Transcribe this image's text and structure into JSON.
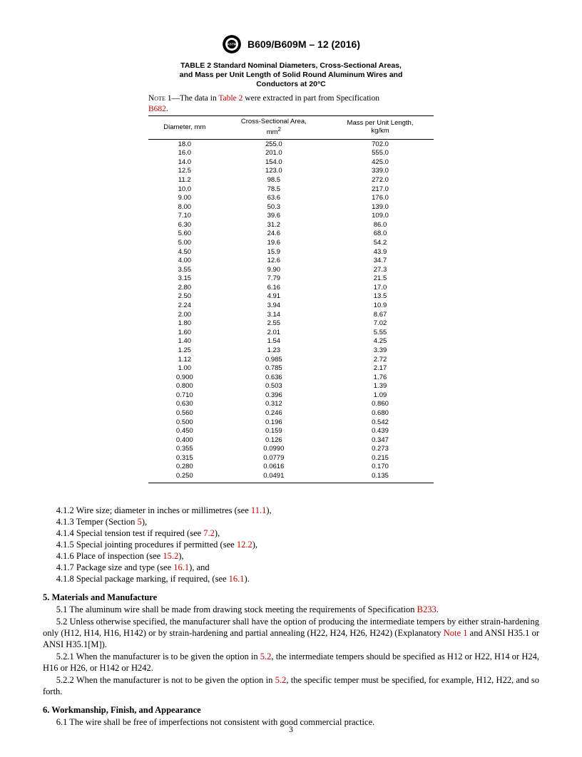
{
  "header": {
    "doc_id": "B609/B609M – 12 (2016)"
  },
  "table": {
    "type": "table",
    "title_line1": "TABLE 2 Standard Nominal Diameters, Cross-Sectional Areas,",
    "title_line2": "and Mass per Unit Length of Solid Round Aluminum Wires and",
    "title_line3": "Conductors at 20°C",
    "note_prefix": "Note",
    "note_number": "1",
    "note_text_before": "—The data in ",
    "note_link1": "Table 2",
    "note_text_mid": " were extracted in part from Specification ",
    "note_link2": "B682",
    "note_suffix": ".",
    "columns": [
      "Diameter, mm",
      "Cross-Sectional Area,\nmm",
      "Mass per Unit Length,\nkg/km"
    ],
    "col_super": [
      "",
      "2",
      ""
    ],
    "column_widths_pct": [
      33,
      34,
      33
    ],
    "colors": {
      "text": "#000000",
      "link": "#c00000",
      "border": "#000000",
      "background": "#ffffff"
    },
    "font": {
      "header_family": "Arial",
      "header_size_pt": 9.5,
      "body_family": "Arial",
      "body_size_pt": 9.5,
      "title_size_pt": 10.5,
      "note_family": "Times New Roman",
      "note_size_pt": 11.5
    },
    "rows": [
      [
        "18.0",
        "255.0",
        "702.0"
      ],
      [
        "16.0",
        "201.0",
        "555.0"
      ],
      [
        "14.0",
        "154.0",
        "425.0"
      ],
      [
        "12.5",
        "123.0",
        "339.0"
      ],
      [
        "11.2",
        "98.5",
        "272.0"
      ],
      [
        "10.0",
        "78.5",
        "217.0"
      ],
      [
        "9.00",
        "63.6",
        "176.0"
      ],
      [
        "8.00",
        "50.3",
        "139.0"
      ],
      [
        "7.10",
        "39.6",
        "109.0"
      ],
      [
        "6.30",
        "31.2",
        "86.0"
      ],
      [
        "5.60",
        "24.6",
        "68.0"
      ],
      [
        "5.00",
        "19.6",
        "54.2"
      ],
      [
        "4.50",
        "15.9",
        "43.9"
      ],
      [
        "4.00",
        "12.6",
        "34.7"
      ],
      [
        "3.55",
        "9.90",
        "27.3"
      ],
      [
        "3.15",
        "7.79",
        "21.5"
      ],
      [
        "2.80",
        "6.16",
        "17.0"
      ],
      [
        "2.50",
        "4.91",
        "13.5"
      ],
      [
        "2.24",
        "3.94",
        "10.9"
      ],
      [
        "2.00",
        "3.14",
        "8.67"
      ],
      [
        "1.80",
        "2.55",
        "7.02"
      ],
      [
        "1.60",
        "2.01",
        "5.55"
      ],
      [
        "1.40",
        "1.54",
        "4.25"
      ],
      [
        "1.25",
        "1.23",
        "3.39"
      ],
      [
        "1.12",
        "0.985",
        "2.72"
      ],
      [
        "1.00",
        "0.785",
        "2.17"
      ],
      [
        "0.900",
        "0.636",
        "1.76"
      ],
      [
        "0.800",
        "0.503",
        "1.39"
      ],
      [
        "0.710",
        "0.396",
        "1.09"
      ],
      [
        "0.630",
        "0.312",
        "0.860"
      ],
      [
        "0.560",
        "0.246",
        "0.680"
      ],
      [
        "0.500",
        "0.196",
        "0.542"
      ],
      [
        "0.450",
        "0.159",
        "0.439"
      ],
      [
        "0.400",
        "0.126",
        "0.347"
      ],
      [
        "0.355",
        "0.0990",
        "0.273"
      ],
      [
        "0.315",
        "0.0779",
        "0.215"
      ],
      [
        "0.280",
        "0.0616",
        "0.170"
      ],
      [
        "0.250",
        "0.0491",
        "0.135"
      ]
    ]
  },
  "body": {
    "items": [
      {
        "num": "4.1.2",
        "before": "Wire size; diameter in inches or millimetres (see ",
        "link": "11.1",
        "after": "),"
      },
      {
        "num": "4.1.3",
        "before": "Temper (Section ",
        "link": "5",
        "after": "),"
      },
      {
        "num": "4.1.4",
        "before": "Special tension test if required (see ",
        "link": "7.2",
        "after": "),"
      },
      {
        "num": "4.1.5",
        "before": "Special jointing procedures if permitted (see ",
        "link": "12.2",
        "after": "),"
      },
      {
        "num": "4.1.6",
        "before": "Place of inspection (see ",
        "link": "15.2",
        "after": "),"
      },
      {
        "num": "4.1.7",
        "before": "Package size and type (see ",
        "link": "16.1",
        "after": "), and"
      },
      {
        "num": "4.1.8",
        "before": "Special package marking, if required, (see ",
        "link": "16.1",
        "after": ")."
      }
    ],
    "sec5_head": "5.  Materials and Manufacture",
    "p51_before": "5.1 The aluminum wire shall be made from drawing stock meeting the requirements of Specification ",
    "p51_link": "B233",
    "p51_after": ".",
    "p52_before": "5.2 Unless otherwise specified, the manufacturer shall have the option of producing the intermediate tempers by either strain-hardening only (H12, H14, H16, H142) or by strain-hardening and partial annealing (H22, H24, H26, H242) (Explanatory ",
    "p52_link": "Note 1",
    "p52_after": " and ANSI H35.1 or ANSI H35.1[M]).",
    "p521_before": "5.2.1 When the manufacturer is to be given the option in ",
    "p521_link": "5.2",
    "p521_after": ", the intermediate tempers should be specified as H12 or H22, H14 or H24, H16 or H26, or H142 or H242.",
    "p522_before": "5.2.2 When the manufacturer is not to be given the option in ",
    "p522_link": "5.2",
    "p522_after": ", the specific temper must be specified, for example, H12, H22, and so forth.",
    "sec6_head": "6.  Workmanship, Finish, and Appearance",
    "p61": "6.1 The wire shall be free of imperfections not consistent with good commercial practice."
  },
  "page_number": "3"
}
